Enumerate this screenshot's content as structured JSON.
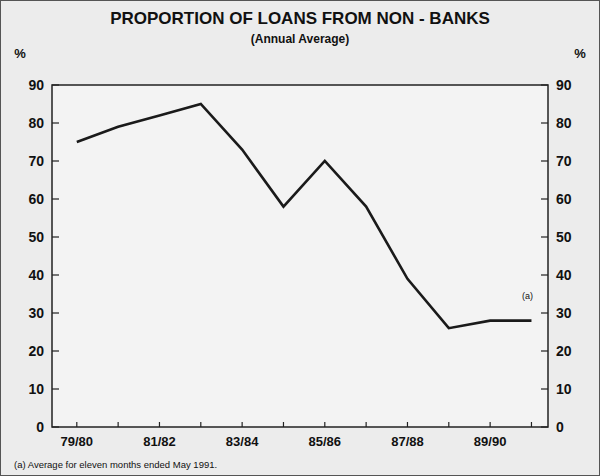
{
  "chart_data": {
    "type": "line",
    "title": "PROPORTION OF LOANS FROM NON - BANKS",
    "subtitle": "(Annual Average)",
    "ylabel": "%",
    "categories": [
      "79/80",
      null,
      "81/82",
      null,
      "83/84",
      null,
      "85/86",
      null,
      "87/88",
      null,
      "89/90",
      null
    ],
    "series": [
      {
        "name": "Proportion of loans from non-banks",
        "color": "#1a1a1a",
        "values": [
          75,
          79,
          82,
          85,
          73,
          58,
          70,
          58,
          39,
          26,
          28,
          28
        ]
      }
    ],
    "ylim": [
      0,
      90
    ],
    "yticks": [
      0,
      10,
      20,
      30,
      40,
      50,
      60,
      70,
      80,
      90
    ],
    "grid": false,
    "annotations": [
      "(a)"
    ],
    "footnote": "(a) Average for eleven months ended May 1991."
  }
}
